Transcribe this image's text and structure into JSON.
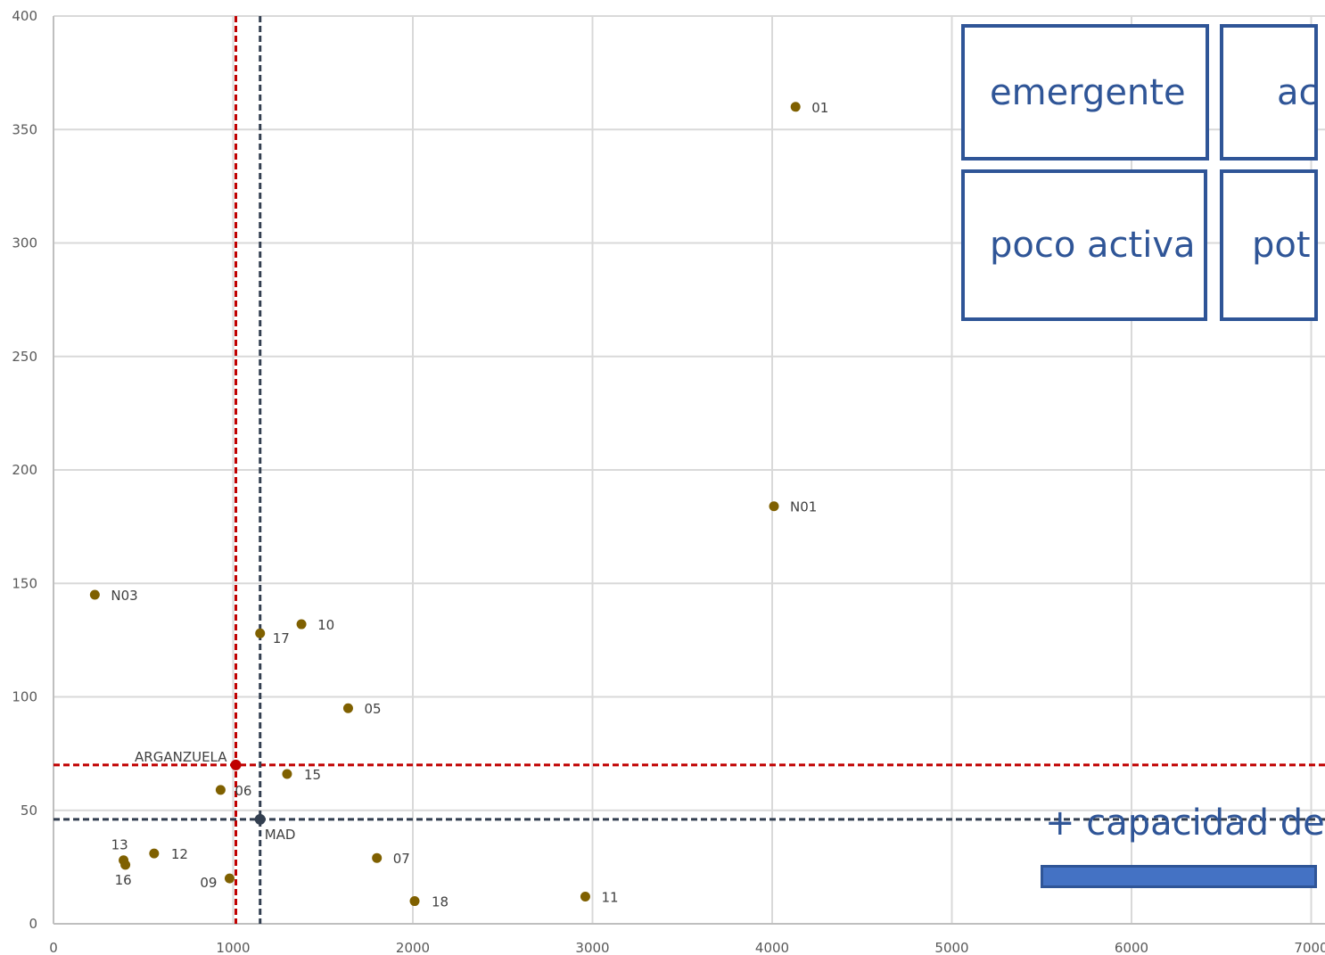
{
  "chart_data": {
    "type": "scatter",
    "title": "",
    "xlabel": "",
    "ylabel": "",
    "xlim": [
      0,
      7000
    ],
    "ylim": [
      0,
      400
    ],
    "x_ticks": [
      "0",
      "1000",
      "2000",
      "3000",
      "4000",
      "5000",
      "6000",
      "7000"
    ],
    "y_ticks": [
      "0",
      "50",
      "100",
      "150",
      "200",
      "250",
      "300",
      "350",
      "400"
    ],
    "grid": true,
    "point_color": "#7f6000",
    "points": [
      {
        "label": "01",
        "x": 4130,
        "y": 360
      },
      {
        "label": "N01",
        "x": 4010,
        "y": 184
      },
      {
        "label": "N03",
        "x": 230,
        "y": 145
      },
      {
        "label": "10",
        "x": 1380,
        "y": 132
      },
      {
        "label": "17",
        "x": 1150,
        "y": 128
      },
      {
        "label": "05",
        "x": 1640,
        "y": 95
      },
      {
        "label": "15",
        "x": 1300,
        "y": 66
      },
      {
        "label": "06",
        "x": 930,
        "y": 59
      },
      {
        "label": "12",
        "x": 560,
        "y": 31
      },
      {
        "label": "13",
        "x": 390,
        "y": 28
      },
      {
        "label": "16",
        "x": 400,
        "y": 26
      },
      {
        "label": "09",
        "x": 980,
        "y": 20
      },
      {
        "label": "07",
        "x": 1800,
        "y": 29
      },
      {
        "label": "18",
        "x": 2010,
        "y": 10
      },
      {
        "label": "11",
        "x": 2960,
        "y": 12
      }
    ],
    "reference_points": [
      {
        "label": "ARGANZUELA",
        "x": 1015,
        "y": 70,
        "color": "#c00000"
      },
      {
        "label": "MAD",
        "x": 1150,
        "y": 46,
        "color": "#333f50"
      }
    ],
    "reference_lines": [
      {
        "axis": "x",
        "value": 1015,
        "color": "#c00000",
        "style": "dashed"
      },
      {
        "axis": "y",
        "value": 70,
        "color": "#c00000",
        "style": "dashed"
      },
      {
        "axis": "x",
        "value": 1150,
        "color": "#333f50",
        "style": "dashed"
      },
      {
        "axis": "y",
        "value": 46,
        "color": "#333f50",
        "style": "dashed"
      }
    ]
  },
  "quadrants": {
    "top_left": "emergente",
    "top_right": "ac",
    "bottom_left": "poco activa",
    "bottom_right": "pot"
  },
  "x_axis_caption": "+ capacidad de"
}
